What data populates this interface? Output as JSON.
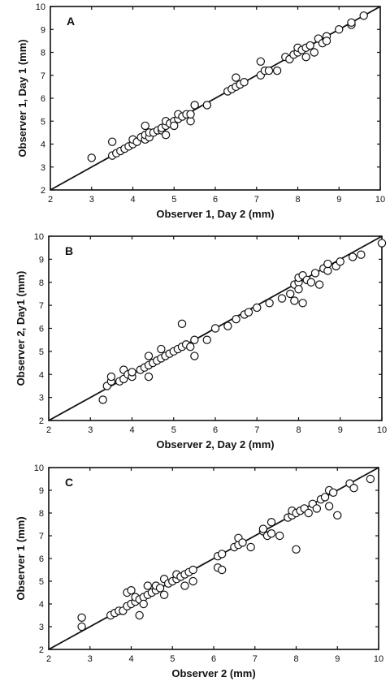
{
  "chart_data": [
    {
      "panel": "A",
      "type": "scatter",
      "title": "",
      "xlabel": "Observer 1, Day 2 (mm)",
      "ylabel": "Observer 1, Day 1 (mm)",
      "xlim": [
        2,
        10
      ],
      "ylim": [
        2,
        10
      ],
      "xticks": [
        "2",
        "3",
        "4",
        "5",
        "6",
        "7",
        "8",
        "9",
        "10"
      ],
      "yticks": [
        "2",
        "3",
        "4",
        "5",
        "6",
        "7",
        "8",
        "9",
        "10"
      ],
      "reference_line": [
        [
          2,
          2
        ],
        [
          10,
          10
        ]
      ],
      "grid": false,
      "points": [
        [
          3.0,
          3.4
        ],
        [
          3.5,
          4.1
        ],
        [
          3.5,
          3.5
        ],
        [
          3.6,
          3.6
        ],
        [
          3.7,
          3.7
        ],
        [
          3.8,
          3.8
        ],
        [
          3.9,
          3.9
        ],
        [
          4.0,
          4.0
        ],
        [
          4.0,
          4.2
        ],
        [
          4.1,
          4.1
        ],
        [
          4.2,
          4.3
        ],
        [
          4.3,
          4.2
        ],
        [
          4.3,
          4.4
        ],
        [
          4.3,
          4.8
        ],
        [
          4.4,
          4.3
        ],
        [
          4.4,
          4.5
        ],
        [
          4.5,
          4.5
        ],
        [
          4.6,
          4.6
        ],
        [
          4.7,
          4.6
        ],
        [
          4.7,
          4.7
        ],
        [
          4.8,
          4.8
        ],
        [
          4.8,
          5.0
        ],
        [
          4.8,
          4.4
        ],
        [
          4.9,
          4.9
        ],
        [
          5.0,
          5.0
        ],
        [
          5.0,
          4.8
        ],
        [
          5.1,
          5.1
        ],
        [
          5.1,
          5.3
        ],
        [
          5.2,
          5.2
        ],
        [
          5.3,
          5.3
        ],
        [
          5.4,
          5.0
        ],
        [
          5.4,
          5.3
        ],
        [
          5.5,
          5.7
        ],
        [
          5.8,
          5.7
        ],
        [
          6.3,
          6.3
        ],
        [
          6.4,
          6.4
        ],
        [
          6.5,
          6.5
        ],
        [
          6.5,
          6.9
        ],
        [
          6.6,
          6.6
        ],
        [
          6.7,
          6.7
        ],
        [
          7.1,
          7.0
        ],
        [
          7.1,
          7.6
        ],
        [
          7.2,
          7.2
        ],
        [
          7.3,
          7.2
        ],
        [
          7.5,
          7.2
        ],
        [
          7.7,
          7.8
        ],
        [
          7.8,
          7.7
        ],
        [
          7.9,
          7.9
        ],
        [
          8.0,
          8.0
        ],
        [
          8.0,
          8.2
        ],
        [
          8.1,
          8.1
        ],
        [
          8.2,
          8.2
        ],
        [
          8.2,
          7.8
        ],
        [
          8.3,
          8.3
        ],
        [
          8.4,
          8.0
        ],
        [
          8.5,
          8.6
        ],
        [
          8.6,
          8.4
        ],
        [
          8.7,
          8.7
        ],
        [
          8.7,
          8.5
        ],
        [
          9.0,
          9.0
        ],
        [
          9.3,
          9.2
        ],
        [
          9.3,
          9.3
        ],
        [
          9.6,
          9.6
        ]
      ]
    },
    {
      "panel": "B",
      "type": "scatter",
      "title": "",
      "xlabel": "Observer 2, Day 2 (mm)",
      "ylabel": "Observer 2, Day1 (mm)",
      "xlim": [
        2,
        10
      ],
      "ylim": [
        2,
        10
      ],
      "xticks": [
        "2",
        "3",
        "4",
        "5",
        "6",
        "7",
        "8",
        "9",
        "10"
      ],
      "yticks": [
        "2",
        "3",
        "4",
        "5",
        "6",
        "7",
        "8",
        "9",
        "10"
      ],
      "reference_line": [
        [
          2,
          2
        ],
        [
          10,
          10
        ]
      ],
      "grid": false,
      "points": [
        [
          3.3,
          2.9
        ],
        [
          3.4,
          3.5
        ],
        [
          3.5,
          3.7
        ],
        [
          3.5,
          3.9
        ],
        [
          3.7,
          3.7
        ],
        [
          3.8,
          3.8
        ],
        [
          3.8,
          4.2
        ],
        [
          3.9,
          4.0
        ],
        [
          4.0,
          3.9
        ],
        [
          4.0,
          4.1
        ],
        [
          4.2,
          4.2
        ],
        [
          4.3,
          4.3
        ],
        [
          4.4,
          4.4
        ],
        [
          4.4,
          4.8
        ],
        [
          4.4,
          3.9
        ],
        [
          4.5,
          4.5
        ],
        [
          4.6,
          4.6
        ],
        [
          4.7,
          4.7
        ],
        [
          4.7,
          5.1
        ],
        [
          4.8,
          4.8
        ],
        [
          4.9,
          4.9
        ],
        [
          5.0,
          5.0
        ],
        [
          5.1,
          5.1
        ],
        [
          5.2,
          5.2
        ],
        [
          5.2,
          6.2
        ],
        [
          5.3,
          5.3
        ],
        [
          5.4,
          5.2
        ],
        [
          5.5,
          5.5
        ],
        [
          5.5,
          4.8
        ],
        [
          5.8,
          5.5
        ],
        [
          6.0,
          6.0
        ],
        [
          6.3,
          6.1
        ],
        [
          6.5,
          6.4
        ],
        [
          6.7,
          6.6
        ],
        [
          6.8,
          6.7
        ],
        [
          7.0,
          6.9
        ],
        [
          7.3,
          7.1
        ],
        [
          7.6,
          7.3
        ],
        [
          7.8,
          7.5
        ],
        [
          7.9,
          7.9
        ],
        [
          7.9,
          7.2
        ],
        [
          8.0,
          8.0
        ],
        [
          8.0,
          7.7
        ],
        [
          8.0,
          8.2
        ],
        [
          8.1,
          7.1
        ],
        [
          8.1,
          8.3
        ],
        [
          8.2,
          8.1
        ],
        [
          8.3,
          8.0
        ],
        [
          8.4,
          8.4
        ],
        [
          8.5,
          7.9
        ],
        [
          8.6,
          8.6
        ],
        [
          8.7,
          8.5
        ],
        [
          8.7,
          8.8
        ],
        [
          8.9,
          8.7
        ],
        [
          9.0,
          8.9
        ],
        [
          9.3,
          9.1
        ],
        [
          9.5,
          9.2
        ],
        [
          10.0,
          9.7
        ]
      ]
    },
    {
      "panel": "C",
      "type": "scatter",
      "title": "",
      "xlabel": "Observer 2 (mm)",
      "ylabel": "Observer 1 (mm)",
      "xlim": [
        2,
        10
      ],
      "ylim": [
        2,
        10
      ],
      "xticks": [
        "2",
        "3",
        "4",
        "5",
        "6",
        "7",
        "8",
        "9",
        "10"
      ],
      "yticks": [
        "2",
        "3",
        "4",
        "5",
        "6",
        "7",
        "8",
        "9",
        "10"
      ],
      "reference_line": [
        [
          2,
          2
        ],
        [
          10,
          10
        ]
      ],
      "grid": false,
      "points": [
        [
          2.8,
          3.0
        ],
        [
          2.8,
          3.4
        ],
        [
          3.5,
          3.5
        ],
        [
          3.6,
          3.6
        ],
        [
          3.7,
          3.7
        ],
        [
          3.8,
          3.7
        ],
        [
          3.9,
          3.9
        ],
        [
          3.9,
          4.5
        ],
        [
          4.0,
          4.0
        ],
        [
          4.0,
          4.6
        ],
        [
          4.1,
          4.1
        ],
        [
          4.1,
          4.3
        ],
        [
          4.2,
          3.5
        ],
        [
          4.2,
          4.2
        ],
        [
          4.3,
          4.3
        ],
        [
          4.3,
          4.0
        ],
        [
          4.4,
          4.4
        ],
        [
          4.4,
          4.8
        ],
        [
          4.5,
          4.5
        ],
        [
          4.6,
          4.6
        ],
        [
          4.6,
          4.8
        ],
        [
          4.7,
          4.7
        ],
        [
          4.8,
          4.4
        ],
        [
          4.8,
          5.1
        ],
        [
          4.9,
          4.9
        ],
        [
          5.0,
          5.0
        ],
        [
          5.1,
          5.1
        ],
        [
          5.1,
          5.3
        ],
        [
          5.2,
          5.2
        ],
        [
          5.3,
          5.3
        ],
        [
          5.3,
          4.8
        ],
        [
          5.4,
          5.4
        ],
        [
          5.5,
          5.5
        ],
        [
          5.5,
          5.0
        ],
        [
          6.1,
          6.1
        ],
        [
          6.1,
          5.6
        ],
        [
          6.2,
          6.2
        ],
        [
          6.2,
          5.5
        ],
        [
          6.5,
          6.5
        ],
        [
          6.6,
          6.6
        ],
        [
          6.6,
          6.9
        ],
        [
          6.7,
          6.7
        ],
        [
          6.9,
          6.5
        ],
        [
          7.2,
          7.2
        ],
        [
          7.2,
          7.3
        ],
        [
          7.3,
          7.0
        ],
        [
          7.4,
          7.1
        ],
        [
          7.4,
          7.6
        ],
        [
          7.6,
          7.0
        ],
        [
          7.8,
          7.8
        ],
        [
          7.9,
          7.9
        ],
        [
          7.9,
          8.1
        ],
        [
          8.0,
          8.0
        ],
        [
          8.0,
          6.4
        ],
        [
          8.1,
          8.1
        ],
        [
          8.2,
          8.2
        ],
        [
          8.3,
          8.0
        ],
        [
          8.4,
          8.4
        ],
        [
          8.5,
          8.2
        ],
        [
          8.6,
          8.6
        ],
        [
          8.7,
          8.7
        ],
        [
          8.8,
          8.3
        ],
        [
          8.8,
          9.0
        ],
        [
          8.9,
          8.9
        ],
        [
          9.0,
          7.9
        ],
        [
          9.3,
          9.3
        ],
        [
          9.4,
          9.1
        ],
        [
          9.8,
          9.5
        ]
      ]
    }
  ]
}
